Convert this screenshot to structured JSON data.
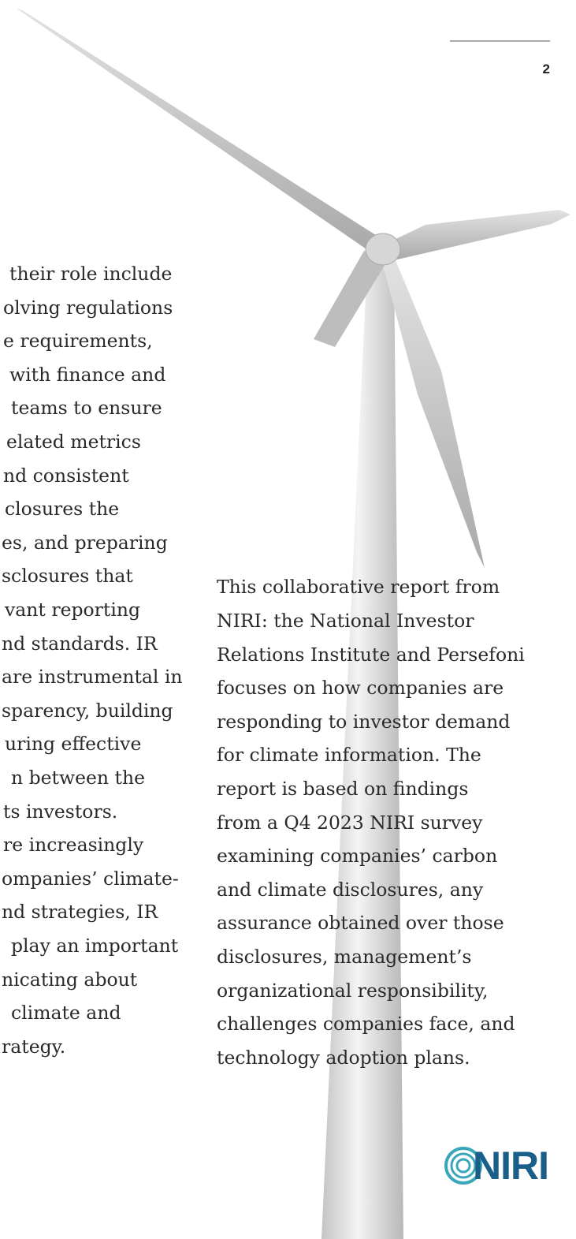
{
  "page_number": "2",
  "left_column": {
    "lines": [
      "their role include",
      "olving regulations",
      "e requirements,",
      "with finance and",
      "teams to ensure",
      "elated metrics",
      "nd consistent",
      "closures the",
      "es, and preparing",
      "sclosures that",
      "vant reporting",
      "nd standards. IR",
      "are instrumental in",
      "sparency, building",
      "uring effective",
      "n between the",
      "ts investors.",
      "re increasingly",
      "ompanies’ climate-",
      "nd strategies, IR",
      "play an important",
      "nicating about",
      "climate and",
      "rategy."
    ]
  },
  "right_column": {
    "lines": [
      "This collaborative report from",
      "NIRI: the National Investor",
      "Relations Institute and Persefoni",
      "focuses on how companies are",
      "responding to investor demand",
      "for climate information. The",
      "report is based on findings",
      "from a Q4 2023 NIRI survey",
      "examining companies’ carbon",
      "and climate disclosures, any",
      "assurance obtained over those",
      "disclosures, management’s",
      "organizational responsibility,",
      "challenges companies face, and",
      "technology adoption plans."
    ]
  },
  "logo": {
    "text": "NIRI"
  }
}
